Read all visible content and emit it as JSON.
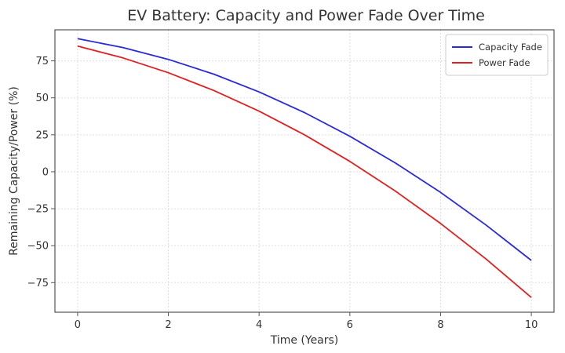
{
  "chart_data": {
    "type": "line",
    "title": "EV Battery: Capacity and Power Fade Over Time",
    "xlabel": "Time (Years)",
    "ylabel": "Remaining Capacity/Power (%)",
    "xlim": [
      -0.5,
      10.5
    ],
    "ylim": [
      -95,
      96
    ],
    "xticks": [
      0,
      2,
      4,
      6,
      8,
      10
    ],
    "yticks": [
      -75,
      -50,
      -25,
      0,
      25,
      50,
      75
    ],
    "grid": true,
    "legend_position": "top-right",
    "series": [
      {
        "name": "Capacity Fade",
        "color": "#2a2ad8",
        "x": [
          0,
          1,
          2,
          3,
          4,
          5,
          6,
          7,
          8,
          9,
          10
        ],
        "y": [
          90.0,
          84.0,
          76.0,
          66.0,
          54.0,
          40.0,
          24.0,
          6.0,
          -14.0,
          -36.0,
          -60.0
        ]
      },
      {
        "name": "Power Fade",
        "color": "#e02020",
        "x": [
          0,
          1,
          2,
          3,
          4,
          5,
          6,
          7,
          8,
          9,
          10
        ],
        "y": [
          85.0,
          77.0,
          67.0,
          55.0,
          41.0,
          25.0,
          7.0,
          -13.0,
          -35.0,
          -59.0,
          -85.0
        ]
      }
    ]
  }
}
